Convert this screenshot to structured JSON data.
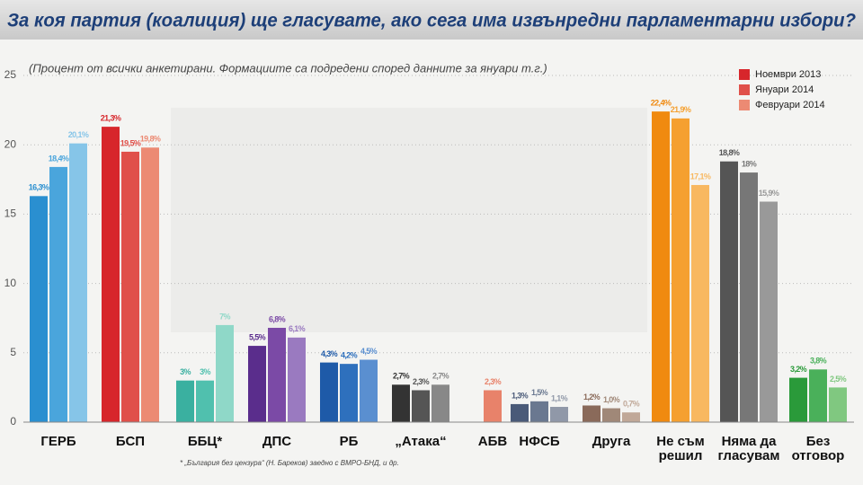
{
  "chart_data": {
    "type": "bar",
    "title": "За коя партия (коалиция) ще гласувате, ако сега има извънредни парламентарни избори?",
    "subtitle": "(Процент от всички анкетирани. Формациите са подредени според данните за януари т.г.)",
    "footnote": "* „България без цензура“ (Н. Бареков) заедно с ВМРО-БНД, и др.",
    "categories": [
      "ГЕРБ",
      "БСП",
      "ББЦ*",
      "ДПС",
      "РБ",
      "„Атака“",
      "АБВ",
      "НФСБ",
      "Друга",
      "Не съм решил",
      "Няма да гласувам",
      "Без отговор"
    ],
    "series": [
      {
        "name": "Ноември 2013",
        "color": "#d7262b",
        "colors": [
          "#2a8fd0",
          "#d7262b",
          "#3ab0a0",
          "#5a2d8c",
          "#1e5aa8",
          "#333333",
          "#e8826a",
          "#4a5a78",
          "#8a6a5a",
          "#f08a10",
          "#555555",
          "#2a9a3a"
        ],
        "values": [
          16.3,
          21.3,
          3,
          5.5,
          4.3,
          2.7,
          null,
          1.3,
          1.2,
          22.4,
          18.8,
          3.2
        ],
        "value_labels": [
          "16,3%",
          "21,3%",
          "3%",
          "5,5%",
          "4,3%",
          "2,7%",
          null,
          "1,3%",
          "1,2%",
          "22,4%",
          "18,8%",
          "3,2%"
        ]
      },
      {
        "name": "Януари 2014",
        "color": "#e0504a",
        "colors": [
          "#4aa5dc",
          "#e0504a",
          "#50c0ae",
          "#7b4aa6",
          "#2e70bd",
          "#555555",
          "#e8826a",
          "#6a7890",
          "#a08878",
          "#f5a030",
          "#777777",
          "#4ab05a"
        ],
        "values": [
          18.4,
          19.5,
          3,
          6.8,
          4.2,
          2.3,
          null,
          1.5,
          1.0,
          21.9,
          18,
          3.8
        ],
        "value_labels": [
          "18,4%",
          "19,5%",
          "3%",
          "6,8%",
          "4,2%",
          "2,3%",
          null,
          "1,5%",
          "1,0%",
          "21,9%",
          "18%",
          "3,8%"
        ]
      },
      {
        "name": "Февруари 2014",
        "color": "#ec8a73",
        "colors": [
          "#86c5e8",
          "#ec8a73",
          "#8fd8c8",
          "#9a7ac0",
          "#5a8fd0",
          "#888888",
          "#e8826a",
          "#9098a8",
          "#c0a898",
          "#f8b860",
          "#999999",
          "#80c880"
        ],
        "values": [
          20.1,
          19.8,
          7,
          6.1,
          4.5,
          2.7,
          2.3,
          1.1,
          0.7,
          17.1,
          15.9,
          2.5
        ],
        "value_labels": [
          "20,1%",
          "19,8%",
          "7%",
          "6,1%",
          "4,5%",
          "2,7%",
          "2,3%",
          "1,1%",
          "0,7%",
          "17,1%",
          "15,9%",
          "2,5%"
        ]
      }
    ],
    "ylim": [
      0,
      25
    ],
    "yticks": [
      0,
      5,
      10,
      15,
      20,
      25
    ],
    "grid": true,
    "legend": "top-right"
  }
}
